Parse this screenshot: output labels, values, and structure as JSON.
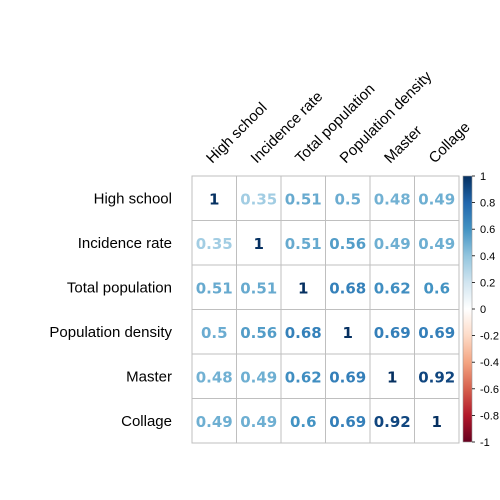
{
  "chart_data": {
    "type": "heatmap",
    "title": "",
    "variables": [
      "High school",
      "Incidence rate",
      "Total population",
      "Population density",
      "Master",
      "Collage"
    ],
    "matrix": [
      [
        1,
        0.35,
        0.51,
        0.5,
        0.48,
        0.49
      ],
      [
        0.35,
        1,
        0.51,
        0.56,
        0.49,
        0.49
      ],
      [
        0.51,
        0.51,
        1,
        0.68,
        0.62,
        0.6
      ],
      [
        0.5,
        0.56,
        0.68,
        1,
        0.69,
        0.69
      ],
      [
        0.48,
        0.49,
        0.62,
        0.69,
        1,
        0.92
      ],
      [
        0.49,
        0.49,
        0.6,
        0.69,
        0.92,
        1
      ]
    ],
    "colorbar": {
      "range": [
        -1,
        1
      ],
      "ticks": [
        "1",
        "0.8",
        "0.6",
        "0.4",
        "0.2",
        "0",
        "-0.2",
        "-0.4",
        "-0.6",
        "-0.8",
        "-1"
      ],
      "colors": [
        "#67001f",
        "#b2182b",
        "#d6604d",
        "#f4a582",
        "#fddbc7",
        "#ffffff",
        "#d1e5f0",
        "#92c5de",
        "#4393c3",
        "#2166ac",
        "#053061"
      ]
    },
    "grid": true,
    "legend": "right"
  }
}
